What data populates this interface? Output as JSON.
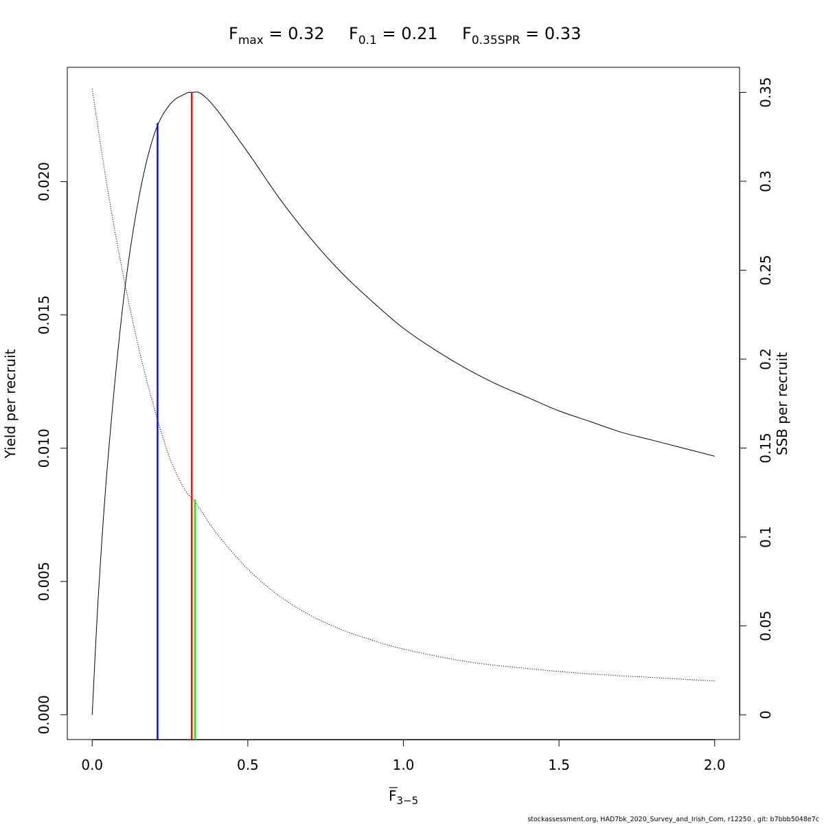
{
  "chart_data": {
    "type": "line",
    "title": {
      "items": [
        {
          "symbol": "F",
          "sub": "max",
          "eq": " = 0.32"
        },
        {
          "symbol": "F",
          "sub": "0.1",
          "eq": " = 0.21"
        },
        {
          "symbol": "F",
          "sub": "0.35SPR",
          "eq": " = 0.33"
        }
      ]
    },
    "xlabel": {
      "symbol": "F",
      "sub": "3−5",
      "overline": true
    },
    "ylabel_left": "Yield per recruit",
    "ylabel_right": "SSB per recruit",
    "xlim": [
      -0.08,
      2.08
    ],
    "ylim_left": [
      -0.00093,
      0.02429
    ],
    "ylim_right": [
      -0.0139,
      0.3641
    ],
    "x_ticks": [
      {
        "value": 0.0,
        "label": "0.0"
      },
      {
        "value": 0.5,
        "label": "0.5"
      },
      {
        "value": 1.0,
        "label": "1.0"
      },
      {
        "value": 1.5,
        "label": "1.5"
      },
      {
        "value": 2.0,
        "label": "2.0"
      }
    ],
    "y_ticks_left": [
      {
        "value": 0.0,
        "label": "0.000"
      },
      {
        "value": 0.005,
        "label": "0.005"
      },
      {
        "value": 0.01,
        "label": "0.010"
      },
      {
        "value": 0.015,
        "label": "0.015"
      },
      {
        "value": 0.02,
        "label": "0.020"
      }
    ],
    "y_ticks_right": [
      {
        "value": 0,
        "label": "0"
      },
      {
        "value": 0.05,
        "label": "0.05"
      },
      {
        "value": 0.1,
        "label": "0.1"
      },
      {
        "value": 0.15,
        "label": "0.15"
      },
      {
        "value": 0.2,
        "label": "0.2"
      },
      {
        "value": 0.25,
        "label": "0.25"
      },
      {
        "value": 0.3,
        "label": "0.3"
      },
      {
        "value": 0.35,
        "label": "0.35"
      }
    ],
    "series": [
      {
        "axis": "left",
        "style": "solid",
        "x": [
          0,
          0.02,
          0.05,
          0.1,
          0.15,
          0.2,
          0.25,
          0.3,
          0.32,
          0.35,
          0.4,
          0.5,
          0.6,
          0.7,
          0.8,
          0.9,
          1.0,
          1.1,
          1.2,
          1.3,
          1.4,
          1.5,
          1.6,
          1.7,
          1.8,
          1.9,
          2.0
        ],
        "y": [
          0.0,
          0.0045,
          0.0095,
          0.0155,
          0.0194,
          0.0218,
          0.0229,
          0.0233,
          0.02335,
          0.0233,
          0.0227,
          0.0211,
          0.0194,
          0.0179,
          0.0166,
          0.0155,
          0.0145,
          0.0137,
          0.013,
          0.0124,
          0.0119,
          0.0114,
          0.011,
          0.0106,
          0.0103,
          0.01,
          0.0097
        ]
      },
      {
        "axis": "right",
        "style": "dotted",
        "x": [
          0,
          0.05,
          0.1,
          0.15,
          0.2,
          0.25,
          0.3,
          0.33,
          0.4,
          0.5,
          0.6,
          0.7,
          0.8,
          0.9,
          1.0,
          1.2,
          1.4,
          1.6,
          1.8,
          2.0
        ],
        "y": [
          0.352,
          0.295,
          0.247,
          0.206,
          0.172,
          0.144,
          0.126,
          0.12,
          0.102,
          0.082,
          0.067,
          0.056,
          0.048,
          0.042,
          0.037,
          0.03,
          0.026,
          0.023,
          0.021,
          0.019
        ]
      }
    ],
    "reference_lines": [
      {
        "name": "F0.1",
        "x": 0.21,
        "y_top": 0.0222,
        "axis": "left",
        "color": "#0000ff"
      },
      {
        "name": "Fmax",
        "x": 0.32,
        "y_top": 0.02335,
        "axis": "left",
        "color": "#ff0000"
      },
      {
        "name": "F0.35SPR",
        "x": 0.33,
        "y_top": 0.121,
        "axis": "right",
        "color": "#00ff00"
      }
    ],
    "grid": false,
    "legend": "none"
  },
  "footer": "stockassessment.org, HAD7bk_2020_Survey_and_Irish_Com, r12250 , git: b7bbb5048e7c"
}
